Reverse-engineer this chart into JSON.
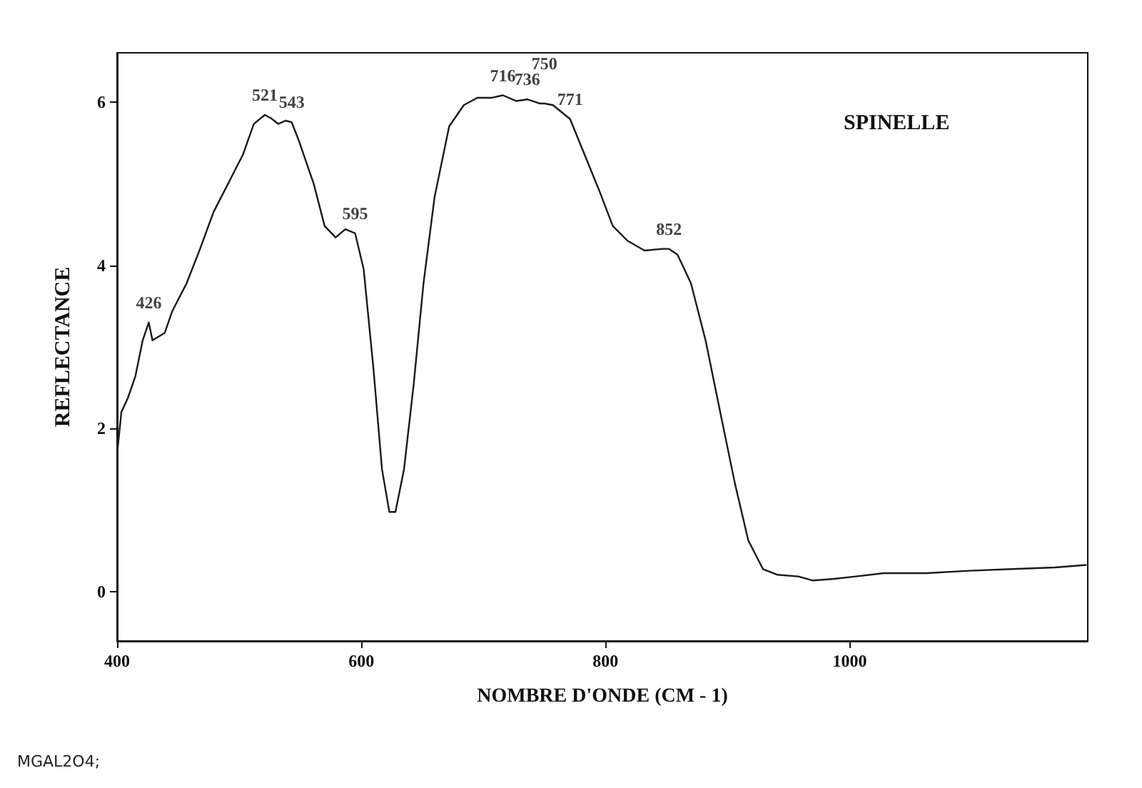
{
  "chart_data": {
    "type": "line",
    "title": "SPINELLE",
    "xlabel": "NOMBRE D'ONDE (CM - 1)",
    "ylabel": "REFLECTANCE",
    "x": [
      400,
      403.5,
      409,
      415,
      421,
      426,
      429,
      439,
      445,
      457,
      468,
      479,
      491,
      503,
      512,
      521,
      526,
      532,
      538,
      543,
      549,
      561,
      570,
      579,
      587,
      595,
      602,
      610,
      617,
      623,
      628,
      635,
      643,
      651,
      660,
      672,
      684,
      695,
      707,
      716,
      727,
      736,
      746,
      750,
      757,
      771,
      783,
      795,
      806,
      818,
      832,
      847,
      852,
      859,
      870,
      882,
      894,
      906,
      917,
      929,
      941,
      958,
      970,
      987,
      1005,
      1028,
      1063,
      1098,
      1133,
      1168,
      1194
    ],
    "series": [
      {
        "color": "#1a1a1a",
        "values": [
          1.68,
          2.2,
          2.38,
          2.64,
          3.08,
          3.3,
          3.08,
          3.17,
          3.43,
          3.78,
          4.2,
          4.65,
          5.0,
          5.35,
          5.73,
          5.84,
          5.8,
          5.73,
          5.77,
          5.75,
          5.52,
          5.0,
          4.48,
          4.34,
          4.44,
          4.39,
          3.95,
          2.73,
          1.5,
          0.98,
          0.98,
          1.5,
          2.55,
          3.78,
          4.83,
          5.7,
          5.96,
          6.05,
          6.05,
          6.08,
          6.01,
          6.03,
          5.98,
          5.98,
          5.96,
          5.79,
          5.35,
          4.91,
          4.48,
          4.3,
          4.18,
          4.2,
          4.2,
          4.13,
          3.78,
          3.08,
          2.2,
          1.33,
          0.63,
          0.28,
          0.21,
          0.19,
          0.14,
          0.16,
          0.19,
          0.23,
          0.23,
          0.26,
          0.28,
          0.3,
          0.33
        ]
      }
    ],
    "xlim": [
      400,
      1195
    ],
    "xticks": [
      400,
      600,
      800,
      1000
    ],
    "ylim": [
      -0.6,
      6.6
    ],
    "yticks": [
      0,
      2,
      4,
      6
    ],
    "marker": "none",
    "line_style": "solid",
    "annotations": [
      {
        "text": "426",
        "x": 426,
        "y": 3.3
      },
      {
        "text": "521",
        "x": 521,
        "y": 5.84
      },
      {
        "text": "543",
        "x": 543,
        "y": 5.75
      },
      {
        "text": "595",
        "x": 595,
        "y": 4.39
      },
      {
        "text": "716",
        "x": 716,
        "y": 6.08
      },
      {
        "text": "736",
        "x": 736,
        "y": 6.03
      },
      {
        "text": "750",
        "x": 750,
        "y": 5.98
      },
      {
        "text": "771",
        "x": 771,
        "y": 5.79
      },
      {
        "text": "852",
        "x": 852,
        "y": 4.2
      },
      "MGAL2O4;"
    ]
  }
}
